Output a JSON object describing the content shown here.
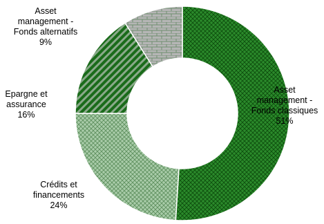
{
  "chart_data": {
    "type": "pie",
    "donut": true,
    "title": "",
    "legend": "none",
    "start": "top",
    "direction": "clockwise",
    "slices": [
      {
        "label_lines": [
          "Asset",
          "management -",
          "Fonds classiques"
        ],
        "value": 51,
        "value_label": "51%",
        "pattern": "fine-crosshatch",
        "color": "#1f7a1f"
      },
      {
        "label_lines": [
          "Crédits et",
          "financements"
        ],
        "value": 24,
        "value_label": "24%",
        "pattern": "light-crosshatch",
        "color": "#9ec49e"
      },
      {
        "label_lines": [
          "Epargne et",
          "assurance"
        ],
        "value": 16,
        "value_label": "16%",
        "pattern": "diagonal-stripes",
        "color": "#1f7a1f"
      },
      {
        "label_lines": [
          "Asset",
          "management -",
          "Fonds alternatifs"
        ],
        "value": 9,
        "value_label": "9%",
        "pattern": "brick",
        "color": "#a8a8a8"
      }
    ]
  }
}
